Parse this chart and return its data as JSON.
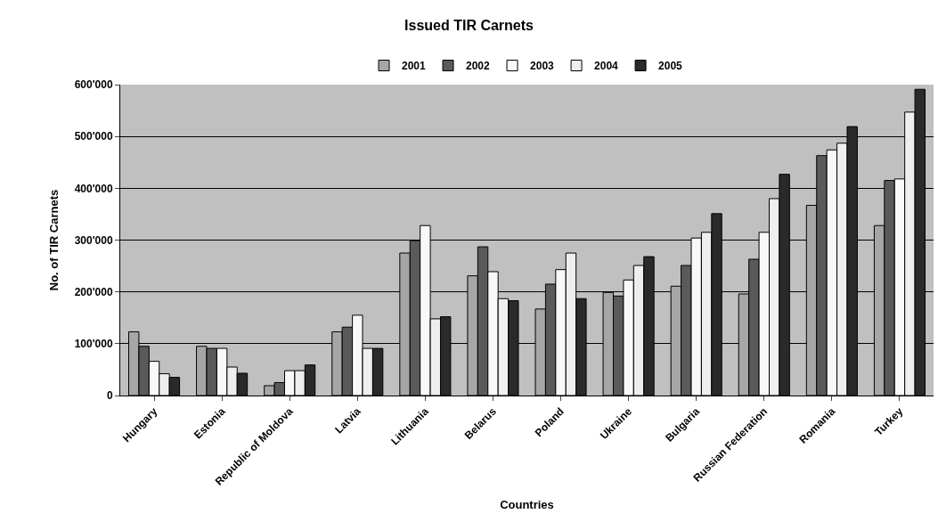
{
  "chart_data": {
    "type": "bar",
    "title": "Issued TIR Carnets",
    "xlabel": "Countries",
    "ylabel": "No. of TIR Carnets",
    "categories": [
      "Hungary",
      "Estonia",
      "Republic of Moldova",
      "Latvia",
      "Lithuania",
      "Belarus",
      "Poland",
      "Ukraine",
      "Bulgaria",
      "Russian Federation",
      "Romania",
      "Turkey"
    ],
    "series": [
      {
        "name": "2001",
        "color": "#a6a6a6",
        "values": [
          123000,
          95000,
          19000,
          123000,
          275000,
          231000,
          167000,
          199000,
          211000,
          196000,
          367000,
          328000
        ]
      },
      {
        "name": "2002",
        "color": "#5a5a5a",
        "values": [
          95000,
          91000,
          25000,
          132000,
          299000,
          287000,
          215000,
          192000,
          251000,
          263000,
          463000,
          415000
        ]
      },
      {
        "name": "2003",
        "color": "#f8f8f8",
        "values": [
          66000,
          91000,
          48000,
          155000,
          328000,
          239000,
          243000,
          223000,
          304000,
          315000,
          474000,
          418000
        ]
      },
      {
        "name": "2004",
        "color": "#eeeeee",
        "values": [
          42000,
          55000,
          48000,
          91000,
          148000,
          187000,
          275000,
          251000,
          315000,
          380000,
          487000,
          547000
        ]
      },
      {
        "name": "2005",
        "color": "#2a2a2a",
        "values": [
          35000,
          43000,
          59000,
          91000,
          152000,
          183000,
          187000,
          268000,
          351000,
          427000,
          519000,
          591000
        ]
      }
    ],
    "ylim": [
      0,
      600000
    ],
    "yticks": [
      0,
      {
        "value": 100000,
        "label": "100'000"
      },
      {
        "value": 200000,
        "label": "200'000"
      },
      {
        "value": 300000,
        "label": "300'000"
      },
      {
        "value": 400000,
        "label": "400'000"
      },
      {
        "value": 500000,
        "label": "500'000"
      },
      {
        "value": 600000,
        "label": "600'000"
      }
    ],
    "grid": "y",
    "legend": "top"
  }
}
